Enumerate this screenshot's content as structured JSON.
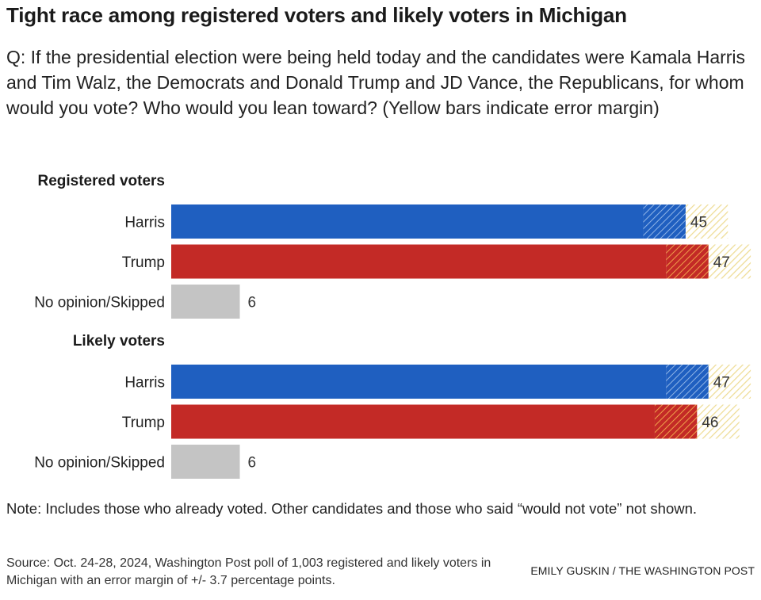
{
  "header": {
    "title": "Tight race among registered voters and likely voters in Michigan",
    "question": "Q: If the presidential election were being held today and the candidates were Kamala Harris and Tim Walz, the Democrats and Donald Trump and JD Vance, the Republicans, for whom would you vote? Who would you lean toward? (Yellow bars indicate error margin)"
  },
  "chart_data": {
    "type": "bar",
    "orientation": "horizontal",
    "error_margin": 3.7,
    "colors": {
      "Harris": "#1f5fc0",
      "Trump": "#c32a26",
      "No opinion/Skipped": "#c4c4c4",
      "margin": "#f1e3a3"
    },
    "groups": [
      {
        "name": "Registered voters",
        "bars": [
          {
            "label": "Harris",
            "value": 45
          },
          {
            "label": "Trump",
            "value": 47
          },
          {
            "label": "No opinion/Skipped",
            "value": 6
          }
        ]
      },
      {
        "name": "Likely voters",
        "bars": [
          {
            "label": "Harris",
            "value": 47
          },
          {
            "label": "Trump",
            "value": 46
          },
          {
            "label": "No opinion/Skipped",
            "value": 6
          }
        ]
      }
    ]
  },
  "footer": {
    "note": "Note: Includes those who already voted. Other candidates and those who said “would not vote” not shown.",
    "source": "Source: Oct. 24-28, 2024, Washington Post poll of 1,003 registered and likely voters in Michigan with an error margin of +/- 3.7 percentage points.",
    "credit": "EMILY GUSKIN / THE WASHINGTON POST"
  }
}
